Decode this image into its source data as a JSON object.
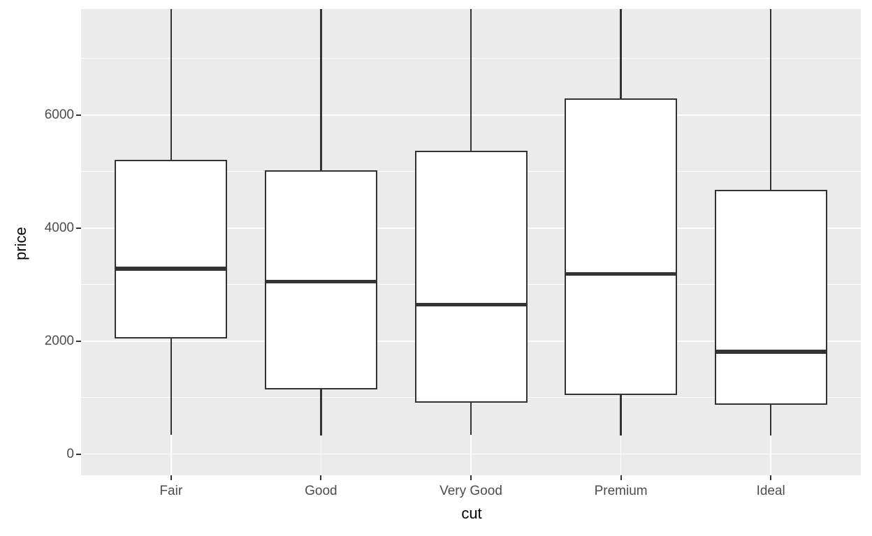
{
  "chart_data": {
    "type": "boxplot",
    "xlabel": "cut",
    "ylabel": "price",
    "categories": [
      "Fair",
      "Good",
      "Very Good",
      "Premium",
      "Ideal"
    ],
    "series": [
      {
        "category": "Fair",
        "whisker_low": 337,
        "q1": 2050,
        "median": 3282,
        "q3": 5206,
        "whisker_high": null,
        "whisker_high_clipped_at_panel_top": true
      },
      {
        "category": "Good",
        "whisker_low": 327,
        "q1": 1145,
        "median": 3051,
        "q3": 5028,
        "whisker_high": null,
        "whisker_high_clipped_at_panel_top": true
      },
      {
        "category": "Very Good",
        "whisker_low": 336,
        "q1": 912,
        "median": 2648,
        "q3": 5373,
        "whisker_high": null,
        "whisker_high_clipped_at_panel_top": true
      },
      {
        "category": "Premium",
        "whisker_low": 326,
        "q1": 1046,
        "median": 3185,
        "q3": 6296,
        "whisker_high": null,
        "whisker_high_clipped_at_panel_top": true
      },
      {
        "category": "Ideal",
        "whisker_low": 326,
        "q1": 878,
        "median": 1810,
        "q3": 4679,
        "whisker_high": null,
        "whisker_high_clipped_at_panel_top": true
      }
    ],
    "y_axis": {
      "tick_labels": [
        "0",
        "2000",
        "4000",
        "6000"
      ],
      "ticks_major": [
        0,
        2000,
        4000,
        6000
      ],
      "ticks_minor": [
        1000,
        3000,
        5000,
        7000
      ],
      "range": [
        -375,
        7875
      ]
    },
    "x_axis": {
      "tick_labels": [
        "Fair",
        "Good",
        "Very Good",
        "Premium",
        "Ideal"
      ]
    },
    "box_width_fraction": 0.75,
    "legend": "none",
    "grid": "on",
    "style": {
      "panel_bg": "#ebebeb",
      "grid_color": "#ffffff",
      "box_stroke": "#333333",
      "box_fill": "#ffffff",
      "median_color": "#333333",
      "tick_label_color": "#4d4d4d",
      "tick_mark_color": "#333333",
      "axis_title_color": "#000000"
    }
  }
}
